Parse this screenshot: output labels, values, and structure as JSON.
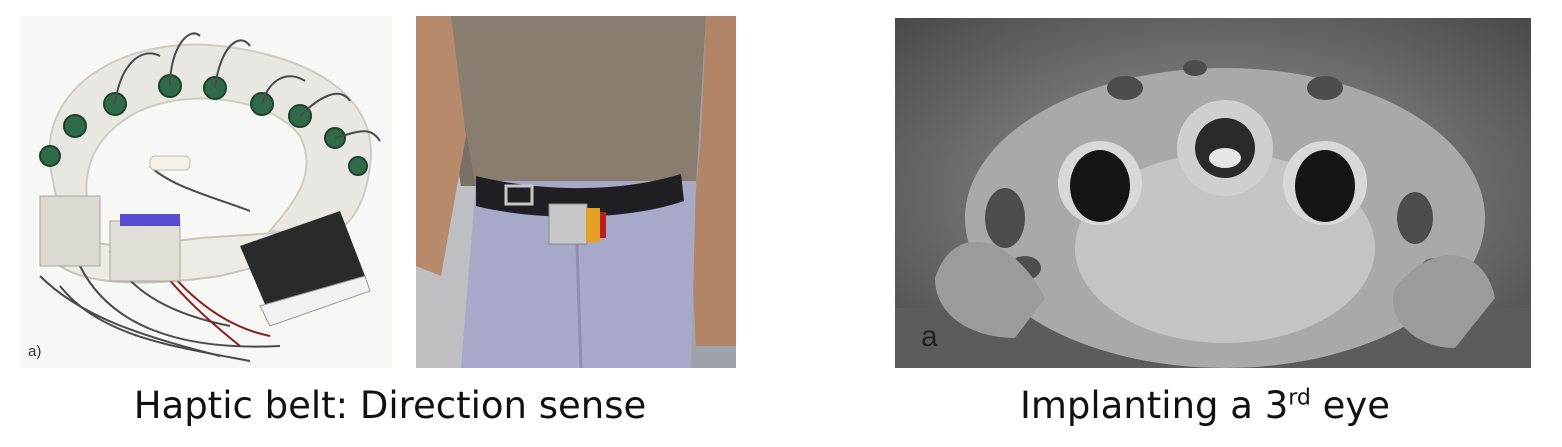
{
  "panels": {
    "belt": {
      "letter": "a)"
    },
    "frog": {
      "letter": "a"
    }
  },
  "captions": {
    "left": "Haptic belt: Direction sense",
    "right_prefix": "Implanting a 3",
    "right_sup": "rd",
    "right_suffix": " eye"
  },
  "colors": {
    "background": "#ffffff",
    "caption_text": "#111111"
  }
}
